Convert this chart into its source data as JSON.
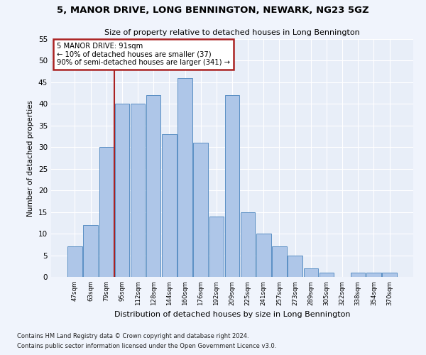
{
  "title": "5, MANOR DRIVE, LONG BENNINGTON, NEWARK, NG23 5GZ",
  "subtitle": "Size of property relative to detached houses in Long Bennington",
  "xlabel": "Distribution of detached houses by size in Long Bennington",
  "ylabel": "Number of detached properties",
  "footnote1": "Contains HM Land Registry data © Crown copyright and database right 2024.",
  "footnote2": "Contains public sector information licensed under the Open Government Licence v3.0.",
  "annotation_line1": "5 MANOR DRIVE: 91sqm",
  "annotation_line2": "← 10% of detached houses are smaller (37)",
  "annotation_line3": "90% of semi-detached houses are larger (341) →",
  "bar_labels": [
    "47sqm",
    "63sqm",
    "79sqm",
    "95sqm",
    "112sqm",
    "128sqm",
    "144sqm",
    "160sqm",
    "176sqm",
    "192sqm",
    "209sqm",
    "225sqm",
    "241sqm",
    "257sqm",
    "273sqm",
    "289sqm",
    "305sqm",
    "322sqm",
    "338sqm",
    "354sqm",
    "370sqm"
  ],
  "bar_values": [
    7,
    12,
    30,
    40,
    40,
    42,
    33,
    46,
    31,
    14,
    42,
    15,
    10,
    7,
    5,
    2,
    1,
    0,
    1,
    1,
    1
  ],
  "bar_color": "#aec6e8",
  "bar_edge_color": "#5a8fc4",
  "bg_color": "#e8eef8",
  "grid_color": "#ffffff",
  "fig_bg_color": "#f0f4fc",
  "vline_color": "#aa2222",
  "annotation_box_color": "#aa2222",
  "ylim": [
    0,
    55
  ],
  "yticks": [
    0,
    5,
    10,
    15,
    20,
    25,
    30,
    35,
    40,
    45,
    50,
    55
  ],
  "vline_pos": 2.525
}
